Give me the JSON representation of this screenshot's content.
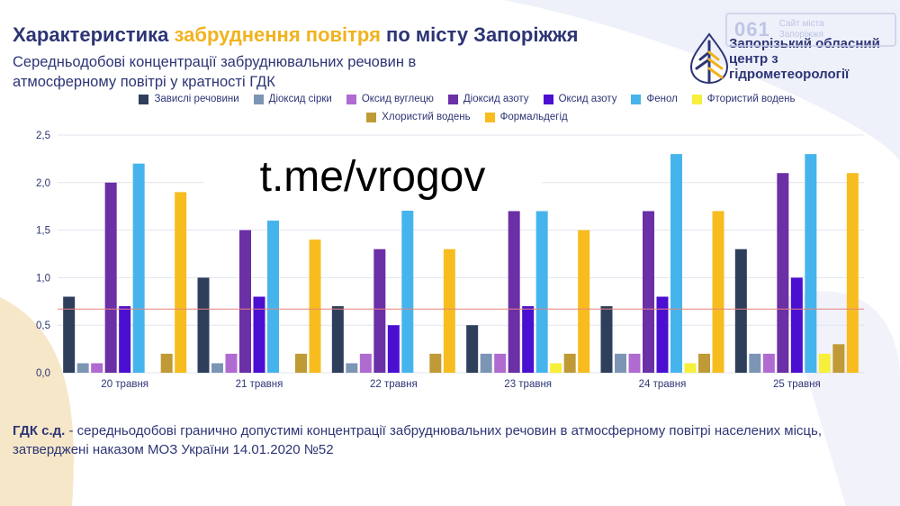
{
  "title": {
    "part1": "Характеристика ",
    "highlight": "забруднення повітря",
    "part2": " по місту Запоріжжя"
  },
  "subtitle": "Середньодобові концентрації забруднювальних речовин в атмосферному повітрі у кратності ГДК",
  "organization": "Запорізький обласний центр з гідрометеорології",
  "watermark": {
    "number": "061",
    "line1": "Сайт міста",
    "line2": "Запоріжжя"
  },
  "promo_text": "t.me/vrogov",
  "footnote": {
    "term": "ГДК с.д.",
    "text": " - середньодобові гранично допустимі концентрації забруднювальних речовин в атмосферному повітрі населених місць, затверджені наказом МОЗ України 14.01.2020 №52"
  },
  "colors": {
    "title_text": "#2d3575",
    "highlight": "#f2b21e",
    "reference_line": "#e8817b"
  },
  "chart_data": {
    "type": "bar",
    "categories": [
      "20 травня",
      "21 травня",
      "22 травня",
      "23 травня",
      "24 травня",
      "25 травня"
    ],
    "series": [
      {
        "name": "Завислі речовини",
        "color": "#2e3f5c",
        "values": [
          0.8,
          1.0,
          0.7,
          0.5,
          0.7,
          1.3
        ]
      },
      {
        "name": "Діоксид сірки",
        "color": "#7d95b5",
        "values": [
          0.1,
          0.1,
          0.1,
          0.2,
          0.2,
          0.2
        ]
      },
      {
        "name": "Оксид вуглецю",
        "color": "#b06bd0",
        "values": [
          0.1,
          0.2,
          0.2,
          0.2,
          0.2,
          0.2
        ]
      },
      {
        "name": "Діоксид азоту",
        "color": "#6b2fa6",
        "values": [
          2.0,
          1.5,
          1.3,
          1.7,
          1.7,
          2.1
        ]
      },
      {
        "name": "Оксид азоту",
        "color": "#4b0fd1",
        "values": [
          0.7,
          0.8,
          0.5,
          0.7,
          0.8,
          1.0
        ]
      },
      {
        "name": "Фенол",
        "color": "#46b4ec",
        "values": [
          2.2,
          1.6,
          1.8,
          1.7,
          2.3,
          2.3
        ]
      },
      {
        "name": "Фтористий водень",
        "color": "#f7ef3a",
        "values": [
          0.0,
          0.0,
          0.0,
          0.1,
          0.1,
          0.2
        ]
      },
      {
        "name": "Хлористий водень",
        "color": "#bf9a36",
        "values": [
          0.2,
          0.2,
          0.2,
          0.2,
          0.2,
          0.3
        ]
      },
      {
        "name": "Формальдегід",
        "color": "#f7bd1f",
        "values": [
          1.9,
          1.4,
          1.3,
          1.5,
          1.7,
          2.1
        ]
      }
    ],
    "y_ticks": [
      "0,0",
      "0,5",
      "1,0",
      "1,5",
      "2,0",
      "2,5"
    ],
    "ylim": [
      0,
      2.5
    ],
    "reference_line": 0.67,
    "grid": true,
    "legend_position": "top"
  }
}
